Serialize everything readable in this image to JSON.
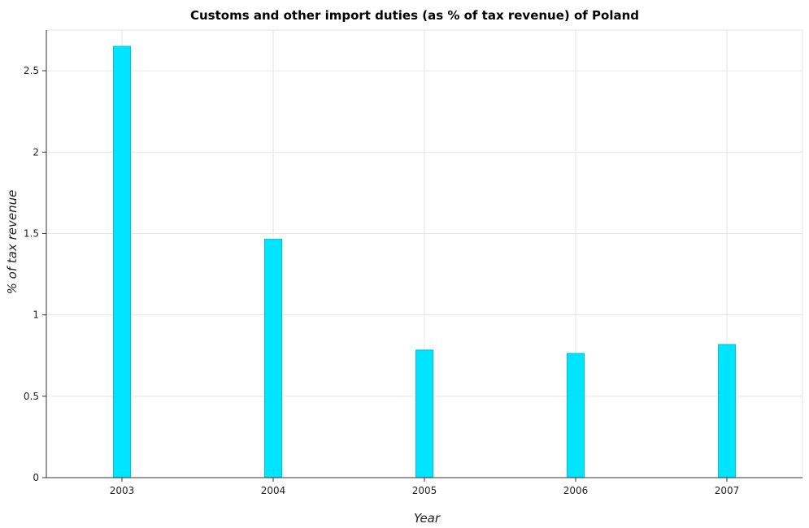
{
  "chart_data": {
    "type": "bar",
    "title": "Customs and other import duties (as % of tax revenue) of Poland",
    "xlabel": "Year",
    "ylabel": "% of tax revenue",
    "categories": [
      "2003",
      "2004",
      "2005",
      "2006",
      "2007"
    ],
    "values": [
      2.65,
      1.465,
      0.784,
      0.763,
      0.818
    ],
    "ylim": [
      0,
      2.75
    ],
    "yticks": [
      0,
      0.5,
      1,
      1.5,
      2,
      2.5
    ],
    "ytick_labels": [
      "0",
      "0.5",
      "1",
      "1.5",
      "2",
      "2.5"
    ],
    "grid": true,
    "bar_color": "#00e5ff",
    "bar_edge_color": "#00c4dd"
  }
}
